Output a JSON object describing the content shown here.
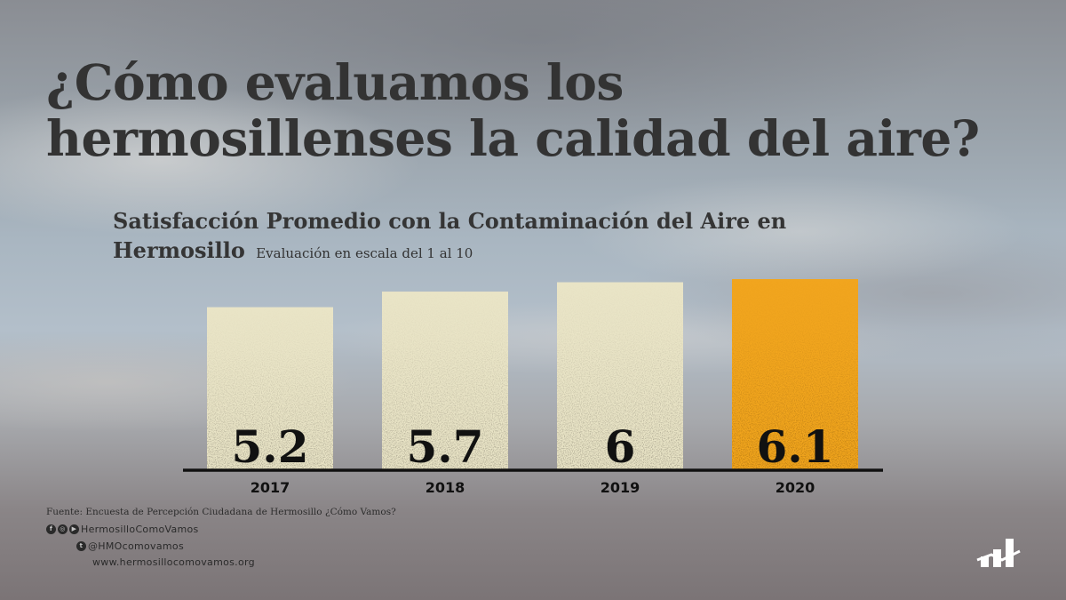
{
  "title": "¿Cómo evaluamos los hermosillenses la calidad del aire?",
  "subtitle": "Satisfacción Promedio con la Contaminación del Aire en Hermosillo",
  "subtitle_note": "Evaluación en escala del 1 al 10",
  "chart_data": {
    "type": "bar",
    "categories": [
      "2017",
      "2018",
      "2019",
      "2020"
    ],
    "values": [
      5.2,
      5.7,
      6,
      6.1
    ],
    "data_labels": [
      "5.2",
      "5.7",
      "6",
      "6.1"
    ],
    "highlight_index": 3,
    "colors": {
      "default": "#e9e4c6",
      "default_grain": "#8f8a78",
      "highlight": "#f1a51e",
      "highlight_grain": "#a16a10",
      "axis": "#111111"
    },
    "ylim": [
      0,
      6.1
    ]
  },
  "source": "Fuente: Encuesta de Percepción Ciudadana de Hermosillo ¿Cómo Vamos?",
  "social": {
    "facebook_icon": "facebook-icon",
    "instagram_icon": "instagram-icon",
    "youtube_icon": "youtube-icon",
    "twitter_icon": "twitter-icon",
    "handle_main": "HermosilloComoVamos",
    "handle_twitter": "@HMOcomovamos",
    "website": "www.hermosillocomovamos.org"
  },
  "logo": "hermosillo-como-vamos-logo"
}
